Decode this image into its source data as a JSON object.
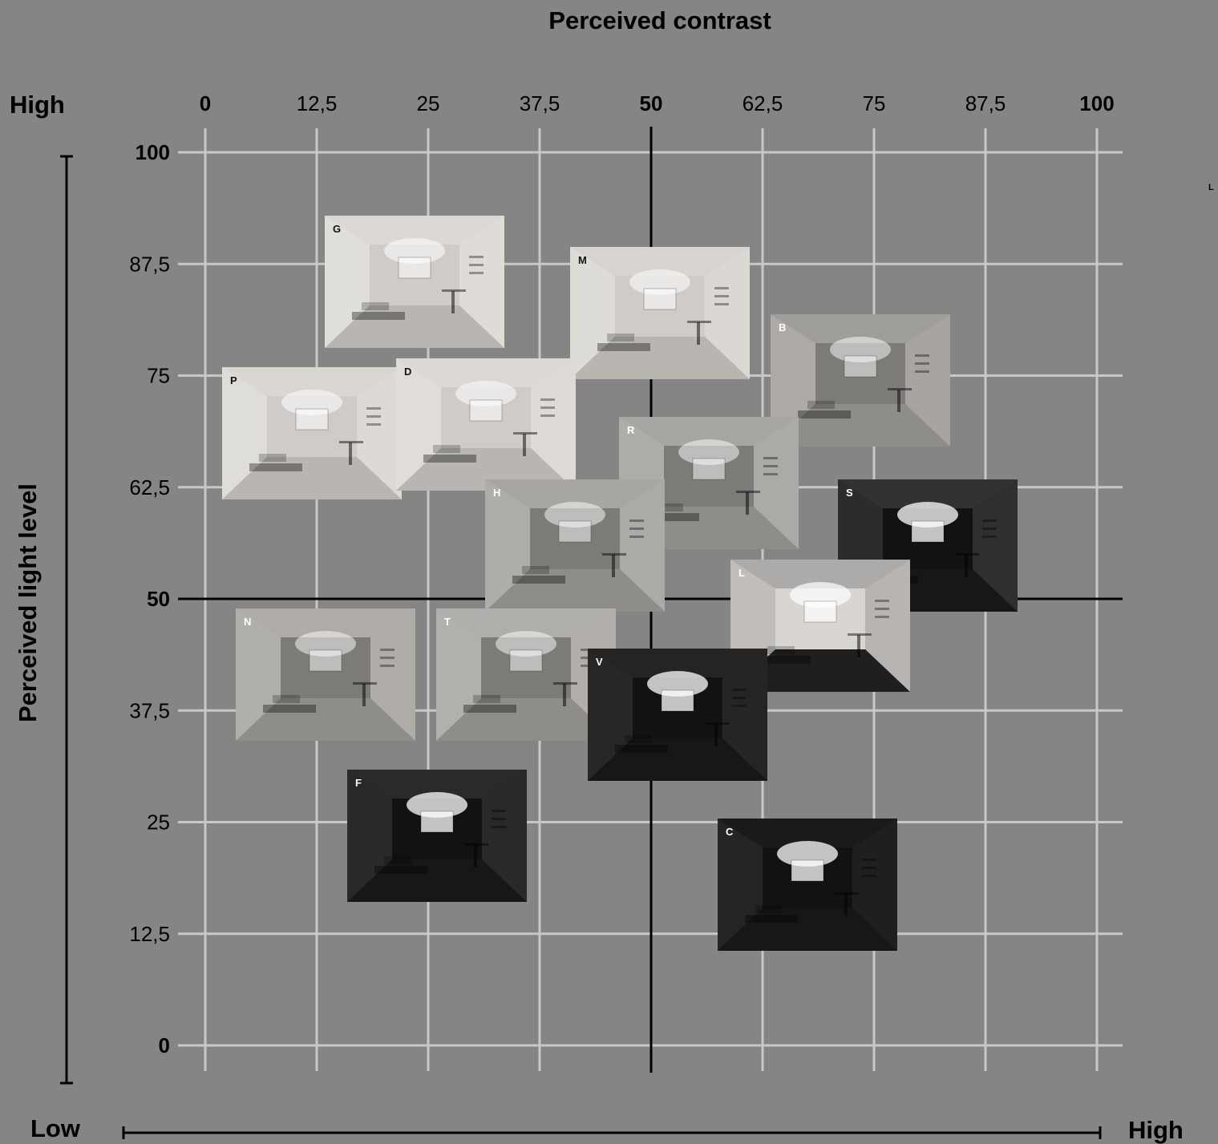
{
  "chart_data": {
    "type": "scatter",
    "title": "Perceived contrast",
    "xlabel": "Perceived contrast",
    "ylabel": "Perceived light level",
    "xlim": [
      0,
      100
    ],
    "ylim": [
      0,
      100
    ],
    "x_ticks": [
      "0",
      "12,5",
      "25",
      "37,5",
      "50",
      "62,5",
      "75",
      "87,5",
      "100"
    ],
    "y_ticks": [
      "0",
      "12,5",
      "25",
      "37,5",
      "50",
      "62,5",
      "75",
      "87,5",
      "100"
    ],
    "grid": true,
    "y_axis_end_label": "High",
    "x_axis_start_label": "Low",
    "x_axis_end_label": "High",
    "stray_label": "L",
    "points": [
      {
        "label": "G",
        "x": 23.5,
        "y": 85.5,
        "tone": "light",
        "bg": "#d6d3cf",
        "label_color": "#111111"
      },
      {
        "label": "M",
        "x": 51.0,
        "y": 82.0,
        "tone": "light",
        "bg": "#c9c6c2",
        "label_color": "#111111"
      },
      {
        "label": "B",
        "x": 73.5,
        "y": 74.5,
        "tone": "mid",
        "bg": "#8a8886",
        "label_color": "#ffffff"
      },
      {
        "label": "P",
        "x": 12.0,
        "y": 68.5,
        "tone": "light",
        "bg": "#d0ccc8",
        "label_color": "#111111"
      },
      {
        "label": "D",
        "x": 31.5,
        "y": 69.5,
        "tone": "light",
        "bg": "#d4d1cd",
        "label_color": "#111111"
      },
      {
        "label": "R",
        "x": 56.5,
        "y": 63.0,
        "tone": "mid",
        "bg": "#9b9996",
        "label_color": "#ffffff"
      },
      {
        "label": "S",
        "x": 81.0,
        "y": 56.0,
        "tone": "dark",
        "bg": "#3d3c3b",
        "label_color": "#ffffff"
      },
      {
        "label": "H",
        "x": 41.5,
        "y": 56.0,
        "tone": "mid",
        "bg": "#9c9a97",
        "label_color": "#ffffff"
      },
      {
        "label": "L",
        "x": 69.0,
        "y": 47.0,
        "tone": "mixed",
        "bg": "#8d8b89",
        "label_color": "#ffffff"
      },
      {
        "label": "N",
        "x": 13.5,
        "y": 41.5,
        "tone": "mid",
        "bg": "#a8a5a2",
        "label_color": "#ffffff"
      },
      {
        "label": "T",
        "x": 36.0,
        "y": 41.5,
        "tone": "mid",
        "bg": "#aeaba8",
        "label_color": "#ffffff"
      },
      {
        "label": "V",
        "x": 53.0,
        "y": 37.0,
        "tone": "dark",
        "bg": "#1e1d1c",
        "label_color": "#ffffff"
      },
      {
        "label": "F",
        "x": 26.0,
        "y": 23.5,
        "tone": "dark",
        "bg": "#2c2b2a",
        "label_color": "#ffffff"
      },
      {
        "label": "C",
        "x": 67.5,
        "y": 18.0,
        "tone": "dark",
        "bg": "#080808",
        "label_color": "#ffffff"
      }
    ]
  }
}
